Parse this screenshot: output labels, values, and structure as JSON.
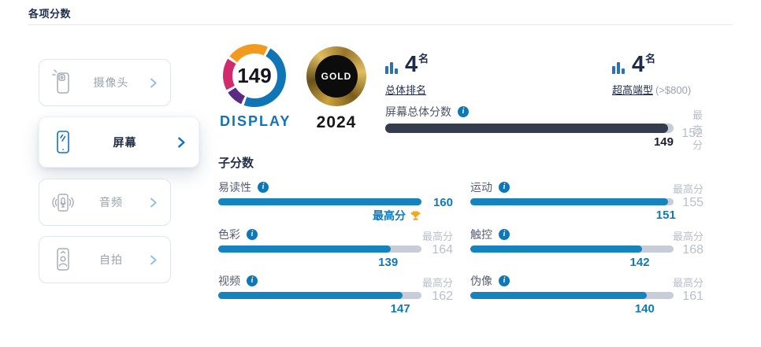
{
  "page": {
    "title": "各项分数"
  },
  "icons": {
    "info_glyph": "i"
  },
  "sidebar": {
    "items": [
      {
        "label": "摄像头"
      },
      {
        "label": "屏幕"
      },
      {
        "label": "音频"
      },
      {
        "label": "自拍"
      }
    ]
  },
  "badges": {
    "display": {
      "score": "149",
      "label": "DISPLAY"
    },
    "award": {
      "label": "GOLD",
      "year": "2024"
    }
  },
  "rankings": {
    "overall": {
      "rank": "4",
      "suffix": "名",
      "category": "总体排名"
    },
    "segment": {
      "rank": "4",
      "suffix": "名",
      "category": "超高端型",
      "note": "(>$800)"
    }
  },
  "overall": {
    "label": "屏幕总体分数",
    "score": 149,
    "max": 152,
    "max_label": "最高分"
  },
  "subscores": {
    "heading": "子分数",
    "max_label": "最高分",
    "best_label": "最高分",
    "items": [
      {
        "label": "易读性",
        "score": 160,
        "max": 160,
        "best": true
      },
      {
        "label": "运动",
        "score": 151,
        "max": 155,
        "best": false
      },
      {
        "label": "色彩",
        "score": 139,
        "max": 164,
        "best": false
      },
      {
        "label": "触控",
        "score": 142,
        "max": 168,
        "best": false
      },
      {
        "label": "视频",
        "score": 147,
        "max": 162,
        "best": false
      },
      {
        "label": "伪像",
        "score": 140,
        "max": 161,
        "best": false
      }
    ]
  },
  "colors": {
    "accent_blue": "#1583bd",
    "score_text_blue": "#0f79b9",
    "dark_bar": "#343c4e",
    "track_gray": "#c6cdd8",
    "muted_gray": "#b9bfca",
    "navy": "#1e2b4a",
    "gold": "#f2a71e"
  }
}
